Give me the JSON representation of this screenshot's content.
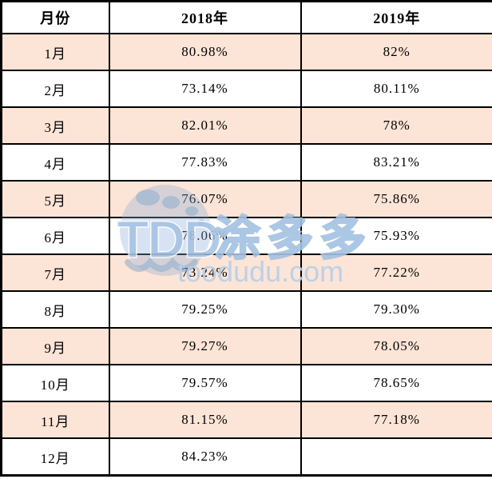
{
  "table": {
    "columns": [
      "月份",
      "2018年",
      "2019年"
    ],
    "rows": [
      {
        "month": "1月",
        "y2018": "80.98%",
        "y2019": "82%"
      },
      {
        "month": "2月",
        "y2018": "73.14%",
        "y2019": "80.11%"
      },
      {
        "month": "3月",
        "y2018": "82.01%",
        "y2019": "78%"
      },
      {
        "month": "4月",
        "y2018": "77.83%",
        "y2019": "83.21%"
      },
      {
        "month": "5月",
        "y2018": "76.07%",
        "y2019": "75.86%"
      },
      {
        "month": "6月",
        "y2018": "78.06%",
        "y2019": "75.93%"
      },
      {
        "month": "7月",
        "y2018": "73.24%",
        "y2019": "77.22%"
      },
      {
        "month": "8月",
        "y2018": "79.25%",
        "y2019": "79.30%"
      },
      {
        "month": "9月",
        "y2018": "79.27%",
        "y2019": "78.05%"
      },
      {
        "month": "10月",
        "y2018": "79.57%",
        "y2019": "78.65%"
      },
      {
        "month": "11月",
        "y2018": "81.15%",
        "y2019": "77.18%"
      },
      {
        "month": "12月",
        "y2018": "84.23%",
        "y2019": ""
      }
    ]
  },
  "chart_data": {
    "type": "table",
    "title": "",
    "columns": [
      "月份",
      "2018年",
      "2019年"
    ],
    "categories": [
      "1月",
      "2月",
      "3月",
      "4月",
      "5月",
      "6月",
      "7月",
      "8月",
      "9月",
      "10月",
      "11月",
      "12月"
    ],
    "series": [
      {
        "name": "2018年",
        "values": [
          80.98,
          73.14,
          82.01,
          77.83,
          76.07,
          78.06,
          73.24,
          79.25,
          79.27,
          79.57,
          81.15,
          84.23
        ]
      },
      {
        "name": "2019年",
        "values": [
          82,
          80.11,
          78,
          83.21,
          75.86,
          75.93,
          77.22,
          79.3,
          78.05,
          78.65,
          77.18,
          null
        ]
      }
    ],
    "value_unit": "%"
  },
  "watermark": {
    "logo_text": "TDD",
    "brand_cn": "涂多多",
    "brand_url": "toodudu.com",
    "color_light": "#b6d0ea",
    "color_mid": "#a3c2e2",
    "color_deep": "#7fa9d6"
  },
  "colors": {
    "row_shade": "#fce4d6",
    "border": "#000000",
    "background": "#ffffff",
    "text": "#000000"
  }
}
